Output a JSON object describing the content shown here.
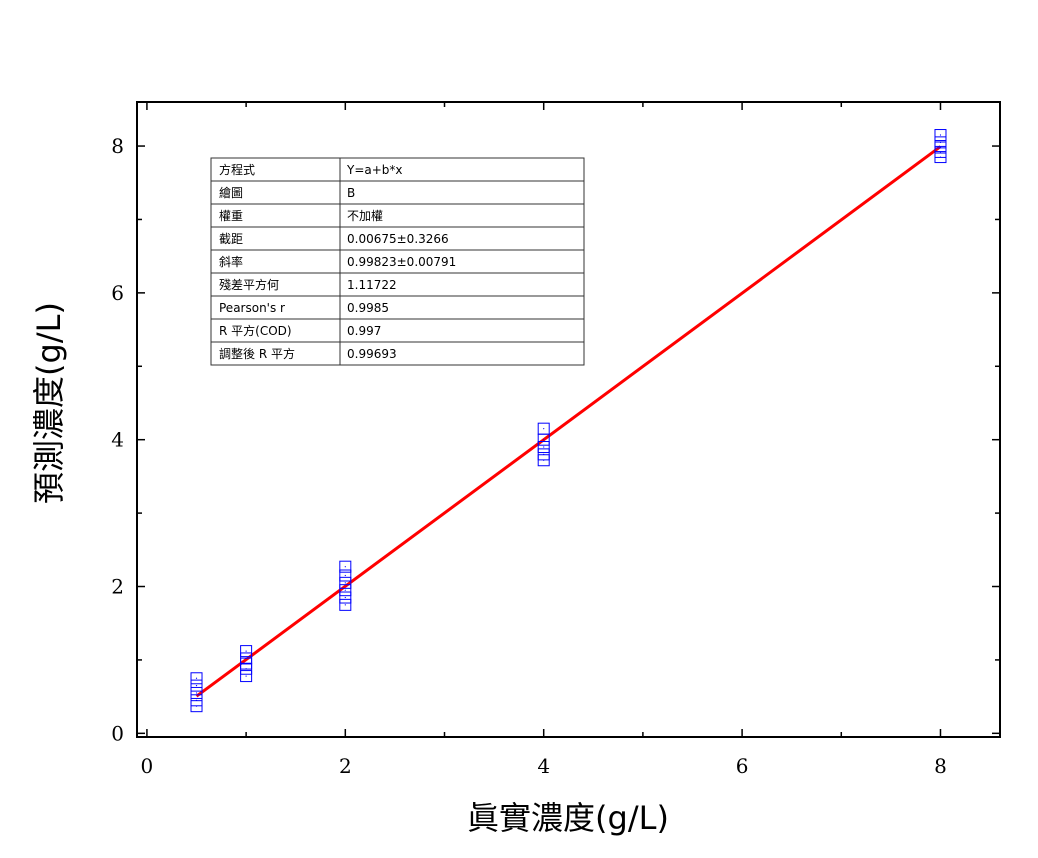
{
  "chart_data": {
    "type": "scatter",
    "xlabel": "眞實濃度(g/L)",
    "ylabel": "預測濃度(g/L)",
    "xlim": [
      -0.1,
      8.6
    ],
    "ylim": [
      -0.05,
      8.6
    ],
    "x_ticks": [
      0,
      2,
      4,
      6,
      8
    ],
    "y_ticks": [
      0,
      2,
      4,
      6,
      8
    ],
    "grid": false,
    "series": [
      {
        "kind": "scatter",
        "marker": "open-square",
        "color": "#0000ff",
        "x": [
          0.5,
          0.5,
          0.5,
          0.5,
          0.5,
          1,
          1,
          1,
          1,
          1,
          2,
          2,
          2,
          2,
          2,
          2,
          4,
          4,
          4,
          4,
          4,
          8,
          8,
          8,
          8,
          8
        ],
        "y": [
          0.75,
          0.65,
          0.55,
          0.45,
          0.37,
          1.12,
          1.02,
          0.95,
          0.88,
          0.78,
          2.27,
          2.15,
          2.05,
          1.95,
          1.85,
          1.75,
          4.15,
          4.0,
          3.9,
          3.8,
          3.72,
          8.15,
          8.05,
          7.98,
          7.92,
          7.85
        ]
      },
      {
        "kind": "line",
        "color": "#ff0000",
        "fit": {
          "intercept": 0.00675,
          "slope": 0.99823
        },
        "x_range": [
          0.5,
          8
        ]
      }
    ],
    "fit_table": [
      [
        "方程式",
        "Y=a+b*x"
      ],
      [
        "繪圖",
        "B"
      ],
      [
        "權重",
        "不加權"
      ],
      [
        "截距",
        "0.00675±0.3266"
      ],
      [
        "斜率",
        "0.99823±0.00791"
      ],
      [
        "殘差平方何",
        "1.11722"
      ],
      [
        "Pearson's r",
        "0.9985"
      ],
      [
        "R 平方(COD)",
        "0.997"
      ],
      [
        "調整後 R 平方",
        "0.99693"
      ]
    ]
  }
}
